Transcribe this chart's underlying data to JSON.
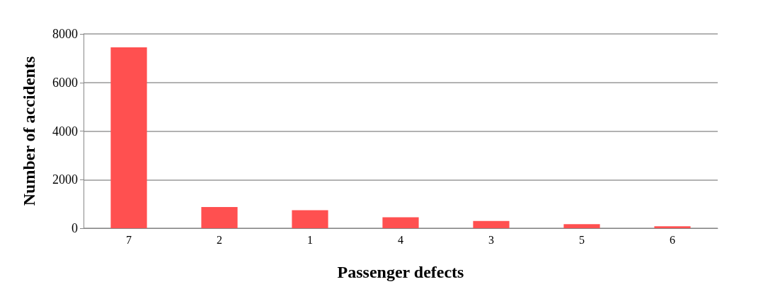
{
  "chart_data": {
    "type": "bar",
    "xlabel": "Passenger defects",
    "ylabel": "Number of accidents",
    "categories": [
      "7",
      "2",
      "1",
      "4",
      "3",
      "5",
      "6"
    ],
    "values": [
      7450,
      870,
      740,
      450,
      300,
      170,
      80
    ],
    "color": "#ff5050",
    "ylim": [
      0,
      8000
    ],
    "yticks": [
      0,
      2000,
      4000,
      6000,
      8000
    ],
    "grid": "y"
  }
}
